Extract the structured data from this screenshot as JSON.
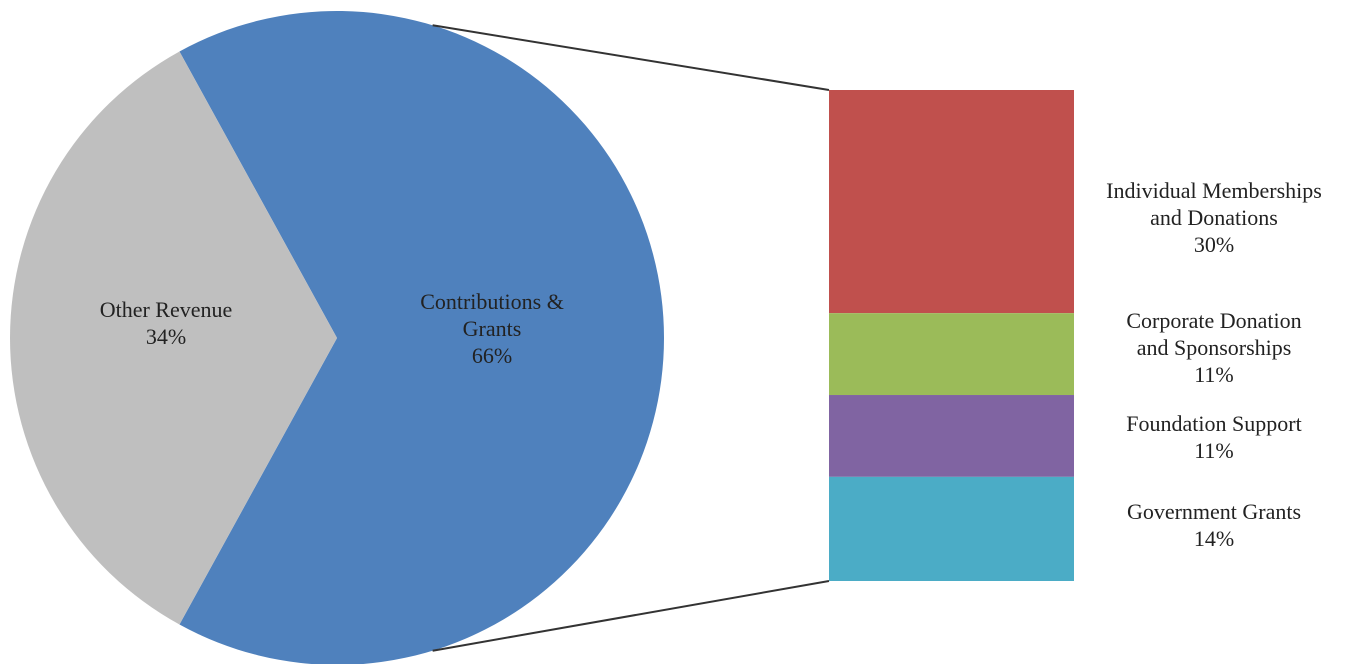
{
  "chart_data": {
    "type": "bar-of-pie",
    "pie": {
      "slices": [
        {
          "label_lines": [
            "Contributions &",
            "Grants"
          ],
          "value_label": "66%",
          "value": 66,
          "color": "#4f81bd"
        },
        {
          "label_lines": [
            "Other Revenue"
          ],
          "value_label": "34%",
          "value": 34,
          "color": "#bfbfbf"
        }
      ]
    },
    "breakdown_of": "Contributions & Grants",
    "stack": {
      "segments": [
        {
          "label_lines": [
            "Individual Memberships",
            "and Donations"
          ],
          "value_label": "30%",
          "value": 30,
          "color": "#c0504d"
        },
        {
          "label_lines": [
            "Corporate Donation",
            "and Sponsorships"
          ],
          "value_label": "11%",
          "value": 11,
          "color": "#9bbb59"
        },
        {
          "label_lines": [
            "Foundation Support"
          ],
          "value_label": "11%",
          "value": 11,
          "color": "#8064a2"
        },
        {
          "label_lines": [
            "Government Grants"
          ],
          "value_label": "14%",
          "value": 14,
          "color": "#4bacc6"
        }
      ]
    },
    "connector_color": "#333333"
  }
}
